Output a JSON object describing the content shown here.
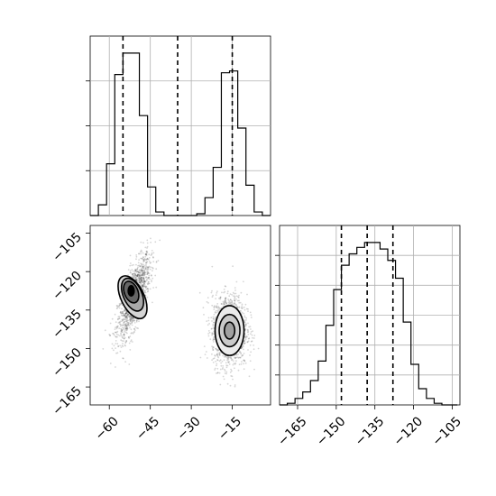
{
  "chart_data": [
    {
      "type": "histogram",
      "panel": "marginal-x",
      "xlim": [
        -67,
        -1
      ],
      "x_ticks": [
        -60,
        -45,
        -30,
        -15
      ],
      "bin_edges": [
        -67,
        -64,
        -61,
        -58,
        -55,
        -52,
        -49,
        -46,
        -43,
        -40,
        -37,
        -34,
        -31,
        -28,
        -25,
        -22,
        -19,
        -16,
        -13,
        -10,
        -7,
        -4,
        -1
      ],
      "counts": [
        0.0,
        0.06,
        0.29,
        0.79,
        0.91,
        0.91,
        0.56,
        0.16,
        0.02,
        0.0,
        0.0,
        0.0,
        0.0,
        0.01,
        0.1,
        0.27,
        0.8,
        0.81,
        0.49,
        0.17,
        0.02,
        0.0
      ],
      "quantiles": [
        -55,
        -35,
        -15
      ],
      "y_tick_count": 3
    },
    {
      "type": "scatter",
      "panel": "joint",
      "xlim": [
        -67,
        -1
      ],
      "ylim": [
        -172,
        -102
      ],
      "x_ticks": [
        -60,
        -45,
        -30,
        -15
      ],
      "y_ticks": [
        -105,
        -120,
        -135,
        -150,
        -165
      ],
      "clusters": [
        {
          "mean_x": -51,
          "mean_y": -130,
          "sd_x": 3,
          "sd_y": 8,
          "corr": 0.7
        },
        {
          "mean_x": -16,
          "mean_y": -143,
          "sd_x": 3.2,
          "sd_y": 7,
          "corr": 0.0
        }
      ],
      "contours": [
        {
          "cx": -51.5,
          "cy": -130,
          "rx": 4.2,
          "ry": 9.0,
          "rotate": -26,
          "fill": "#d6d6d6"
        },
        {
          "cx": -51.5,
          "cy": -129,
          "rx": 3.4,
          "ry": 6.8,
          "rotate": -24,
          "fill": "#a9a9a9"
        },
        {
          "cx": -52,
          "cy": -128,
          "rx": 2.5,
          "ry": 4.4,
          "rotate": -22,
          "fill": "#666666"
        },
        {
          "cx": -52,
          "cy": -127.5,
          "rx": 1.1,
          "ry": 2.0,
          "rotate": 0,
          "fill": "#000000"
        },
        {
          "cx": -16,
          "cy": -143,
          "rx": 5.3,
          "ry": 9.7,
          "rotate": 0,
          "fill": "#ebebeb"
        },
        {
          "cx": -16,
          "cy": -143,
          "rx": 3.8,
          "ry": 6.3,
          "rotate": 0,
          "fill": "#c9c9c9"
        },
        {
          "cx": -16,
          "cy": -143,
          "rx": 1.9,
          "ry": 3.3,
          "rotate": 0,
          "fill": "#a0a0a0"
        }
      ]
    },
    {
      "type": "histogram",
      "panel": "marginal-y",
      "xlim": [
        -172,
        -102
      ],
      "x_ticks": [
        -165,
        -150,
        -135,
        -120,
        -105
      ],
      "bin_edges": [
        -172,
        -169,
        -166,
        -163,
        -160,
        -157,
        -154,
        -151,
        -148,
        -145,
        -142,
        -139,
        -136,
        -133,
        -130,
        -127,
        -124,
        -121,
        -118,
        -115,
        -112,
        -109,
        -106,
        -103
      ],
      "counts": [
        0.0,
        0.01,
        0.04,
        0.08,
        0.15,
        0.27,
        0.49,
        0.71,
        0.86,
        0.93,
        0.97,
        1.0,
        1.0,
        0.96,
        0.89,
        0.78,
        0.51,
        0.25,
        0.1,
        0.04,
        0.01,
        0.0,
        0.0
      ],
      "quantiles": [
        -148,
        -138,
        -128
      ],
      "y_tick_count": 5
    }
  ]
}
